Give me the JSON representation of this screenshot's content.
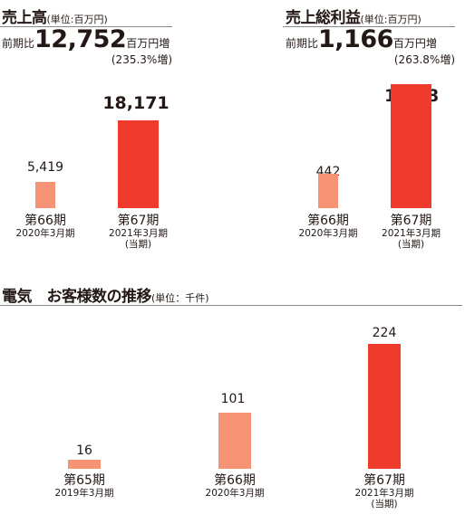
{
  "colors": {
    "previous": "#f59374",
    "current": "#ee3b2b",
    "text": "#231815",
    "rule": "#8a8a8a"
  },
  "chart_data": [
    {
      "type": "bar",
      "title": "売上高",
      "unit": "(単位:百万円)",
      "change": {
        "prefix": "前期比",
        "value": "12,752",
        "suffix": "百万円増",
        "pct": "(235.3%増)"
      },
      "ylim": [
        0,
        18171
      ],
      "categories": [
        "第66期",
        "第67期"
      ],
      "dates": [
        "2020年3月期",
        "2021年3月期"
      ],
      "notes": [
        "",
        "(当期)"
      ],
      "values": [
        5419,
        18171
      ],
      "labels": [
        "5,419",
        "18,171"
      ]
    },
    {
      "type": "bar",
      "title": "売上総利益",
      "unit": "(単位:百万円)",
      "change": {
        "prefix": "前期比",
        "value": "1,166",
        "suffix": "百万円増",
        "pct": "(263.8%増)"
      },
      "ylim": [
        0,
        1608
      ],
      "categories": [
        "第66期",
        "第67期"
      ],
      "dates": [
        "2020年3月期",
        "2021年3月期"
      ],
      "notes": [
        "",
        "(当期)"
      ],
      "values": [
        442,
        1608
      ],
      "labels": [
        "442",
        "1,608"
      ]
    },
    {
      "type": "bar",
      "title": "電気　お客様数の推移",
      "unit": "(単位：千件)",
      "ylim": [
        0,
        224
      ],
      "categories": [
        "第65期",
        "第66期",
        "第67期"
      ],
      "dates": [
        "2019年3月期",
        "2020年3月期",
        "2021年3月期"
      ],
      "notes": [
        "",
        "",
        "(当期)"
      ],
      "values": [
        16,
        101,
        224
      ],
      "labels": [
        "16",
        "101",
        "224"
      ]
    }
  ]
}
